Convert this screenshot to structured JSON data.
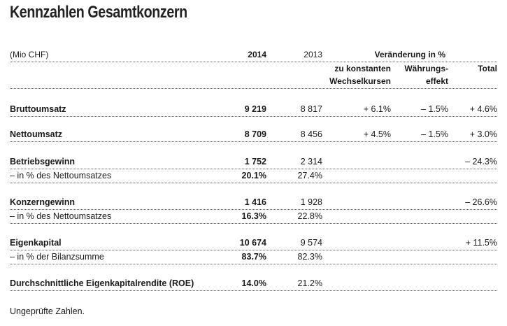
{
  "title": "Kennzahlen Gesamtkonzern",
  "header": {
    "unit": "(Mio CHF)",
    "y2014": "2014",
    "y2013": "2013",
    "change": "Veränderung in %",
    "konst1": "zu konstanten",
    "konst2": "Wechselkursen",
    "waehr1": "Währungs-",
    "waehr2": "effekt",
    "total": "Total"
  },
  "rows": [
    {
      "label": "Bruttoumsatz",
      "v2014": "9 219",
      "v2013": "8 817",
      "konst": "+ 6.1%",
      "waehr": "– 1.5%",
      "total": "+ 4.6%"
    },
    {
      "label": "Nettoumsatz",
      "v2014": "8 709",
      "v2013": "8 456",
      "konst": "+ 4.5%",
      "waehr": "– 1.5%",
      "total": "+ 3.0%"
    },
    {
      "label": "Betriebsgewinn",
      "v2014": "1 752",
      "v2013": "2 314",
      "total": "– 24.3%"
    },
    {
      "label": "– in % des Nettoumsatzes",
      "v2014": "20.1%",
      "v2013": "27.4%"
    },
    {
      "label": "Konzerngewinn",
      "v2014": "1 416",
      "v2013": "1 928",
      "total": "– 26.6%"
    },
    {
      "label": "– in % des Nettoumsatzes",
      "v2014": "16.3%",
      "v2013": "22.8%"
    },
    {
      "label": "Eigenkapital",
      "v2014": "10 674",
      "v2013": "9 574",
      "total": "+ 11.5%"
    },
    {
      "label": "– in % der Bilanzsumme",
      "v2014": "83.7%",
      "v2013": "82.3%"
    },
    {
      "label": "Durchschnittliche Eigenkapitalrendite (ROE)",
      "v2014": "14.0%",
      "v2013": "21.2%"
    }
  ],
  "note": "Ungeprüfte Zahlen."
}
